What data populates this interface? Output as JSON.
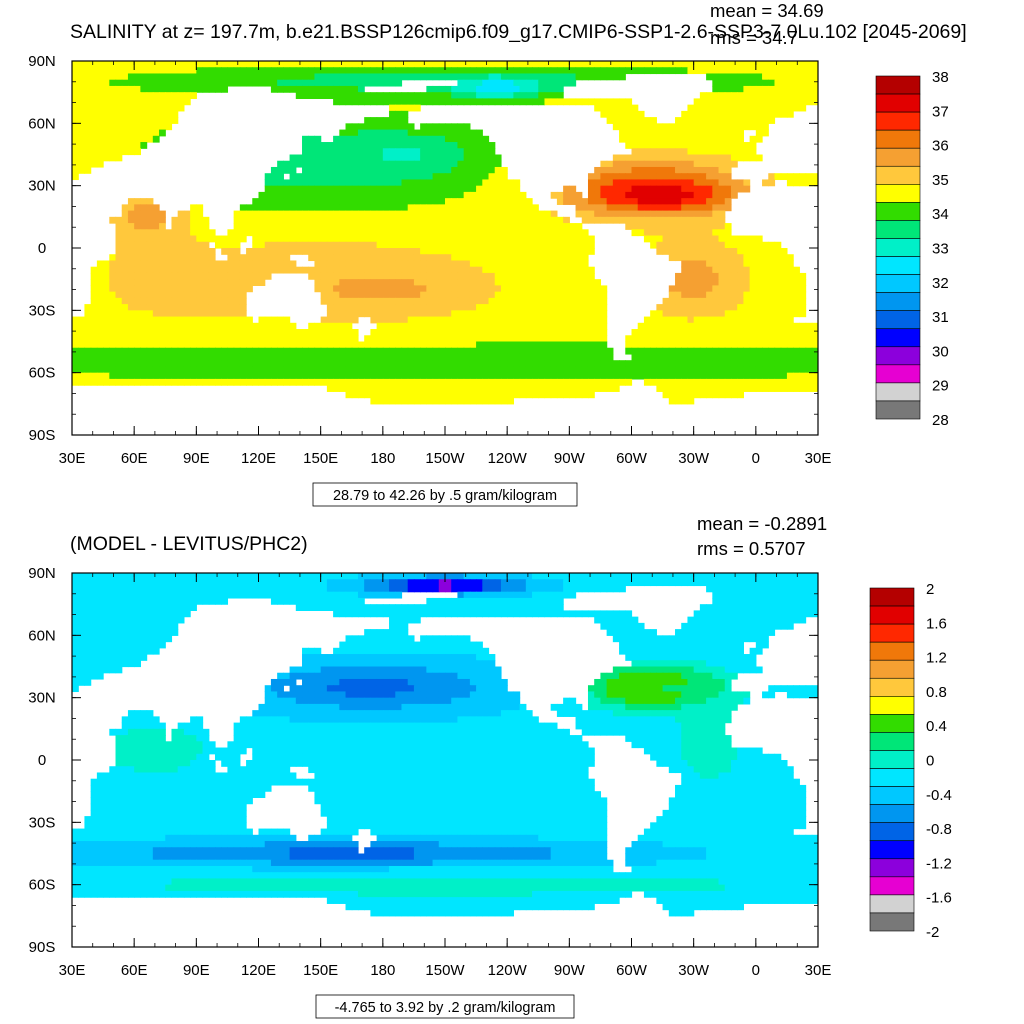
{
  "chart_data": [
    {
      "type": "heatmap",
      "title": "SALINITY at z= 197.7m, b.e21.BSSP126cmip6.f09_g17.CMIP6-SSP1-2.6-SSP3-7.0Lu.102 [2045-2069]",
      "stats": {
        "mean": "mean = 34.69",
        "rms": "rms = 34.7"
      },
      "x_ticks": [
        "30E",
        "60E",
        "90E",
        "120E",
        "150E",
        "180",
        "150W",
        "120W",
        "90W",
        "60W",
        "30W",
        "0",
        "30E"
      ],
      "y_ticks": [
        "90N",
        "60N",
        "30N",
        "0",
        "30S",
        "60S",
        "90S"
      ],
      "xlim": [
        30,
        390
      ],
      "ylim": [
        -90,
        90
      ],
      "contour_info": "28.79 to 42.26 by .5 gram/kilogram",
      "colorbar": {
        "labels": [
          "38",
          "37",
          "36",
          "35",
          "34",
          "33",
          "32",
          "31",
          "30",
          "29",
          "28"
        ],
        "colors": [
          "#B40000",
          "#E10000",
          "#FF2800",
          "#F0780A",
          "#F5A032",
          "#FFC83C",
          "#FFFF00",
          "#32DC00",
          "#00E678",
          "#00F0C8",
          "#00E6FF",
          "#00C8FF",
          "#0096F0",
          "#0064E6",
          "#0000FF",
          "#8C00DC",
          "#E600D2",
          "#D2D2D2",
          "#787878"
        ]
      },
      "field": {
        "background": 34.5,
        "blobs": [
          {
            "lon": 150,
            "lat": 40,
            "rx": 70,
            "ry": 22,
            "value": 33.5
          },
          {
            "lon": 190,
            "lat": 45,
            "rx": 30,
            "ry": 10,
            "value": 33.2
          },
          {
            "lon": 150,
            "lat": -15,
            "rx": 90,
            "ry": 25,
            "value": 35.1
          },
          {
            "lon": 180,
            "lat": -20,
            "rx": 40,
            "ry": 10,
            "value": 35.5
          },
          {
            "lon": 310,
            "lat": 28,
            "rx": 45,
            "ry": 14,
            "value": 36.8
          },
          {
            "lon": 315,
            "lat": 25,
            "rx": 25,
            "ry": 6,
            "value": 37.2
          },
          {
            "lon": 330,
            "lat": -15,
            "rx": 25,
            "ry": 18,
            "value": 35.6
          },
          {
            "lon": 65,
            "lat": 15,
            "rx": 20,
            "ry": 12,
            "value": 35.6
          },
          {
            "lon": 75,
            "lat": -15,
            "rx": 25,
            "ry": 15,
            "value": 35.3
          },
          {
            "lon": 210,
            "lat": -55,
            "rx": 200,
            "ry": 8,
            "value": 33.8
          },
          {
            "lon": 210,
            "lat": 80,
            "rx": 120,
            "ry": 6,
            "value": 33.4
          },
          {
            "lon": 235,
            "lat": 77,
            "rx": 20,
            "ry": 5,
            "value": 32.4
          }
        ]
      }
    },
    {
      "type": "heatmap",
      "title": "(MODEL - LEVITUS/PHC2)",
      "stats": {
        "mean": "mean = -0.2891",
        "rms": "rms = 0.5707"
      },
      "x_ticks": [
        "30E",
        "60E",
        "90E",
        "120E",
        "150E",
        "180",
        "150W",
        "120W",
        "90W",
        "60W",
        "30W",
        "0",
        "30E"
      ],
      "y_ticks": [
        "90N",
        "60N",
        "30N",
        "0",
        "30S",
        "60S",
        "90S"
      ],
      "xlim": [
        30,
        390
      ],
      "ylim": [
        -90,
        90
      ],
      "contour_info": "-4.765 to 3.92 by .2 gram/kilogram",
      "colorbar": {
        "labels": [
          "2",
          "1.6",
          "1.2",
          "0.8",
          "0.4",
          "0",
          "-0.4",
          "-0.8",
          "-1.2",
          "-1.6",
          "-2"
        ],
        "colors": [
          "#B40000",
          "#E10000",
          "#FF2800",
          "#F0780A",
          "#F5A032",
          "#FFC83C",
          "#FFFF00",
          "#32DC00",
          "#00E678",
          "#00F0C8",
          "#00E6FF",
          "#00C8FF",
          "#0096F0",
          "#0064E6",
          "#0000FF",
          "#8C00DC",
          "#E600D2",
          "#D2D2D2",
          "#787878"
        ]
      },
      "field": {
        "background": -0.25,
        "blobs": [
          {
            "lon": 175,
            "lat": 35,
            "rx": 60,
            "ry": 12,
            "value": -0.8
          },
          {
            "lon": 165,
            "lat": -45,
            "rx": 120,
            "ry": 6,
            "value": -0.8
          },
          {
            "lon": 210,
            "lat": -60,
            "rx": 150,
            "ry": 5,
            "value": 0.1
          },
          {
            "lon": 210,
            "lat": 84,
            "rx": 35,
            "ry": 4,
            "value": -1.3
          },
          {
            "lon": 310,
            "lat": 35,
            "rx": 30,
            "ry": 10,
            "value": 0.8
          },
          {
            "lon": 320,
            "lat": 35,
            "rx": 25,
            "ry": 6,
            "value": 0.3
          },
          {
            "lon": 338,
            "lat": 10,
            "rx": 15,
            "ry": 20,
            "value": 0.1
          },
          {
            "lon": 70,
            "lat": 5,
            "rx": 30,
            "ry": 15,
            "value": 0.0
          }
        ]
      }
    }
  ]
}
